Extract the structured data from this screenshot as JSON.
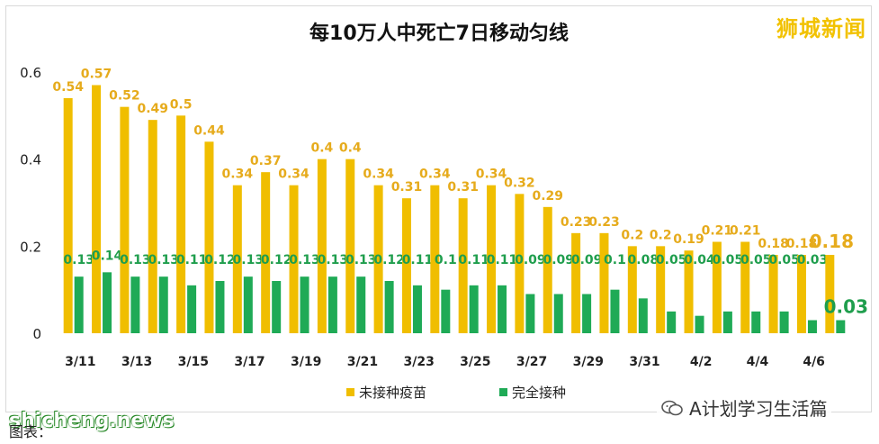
{
  "brand": "狮城新闻",
  "watermark": {
    "site": "shicheng.news",
    "account": "A计划学习生活篇"
  },
  "caption": "图表：",
  "colors": {
    "unvaccinated": "#f0be00",
    "unvaccinated_label": "#e6ab1c",
    "vaccinated": "#1faa56",
    "vaccinated_label": "#1f9e4d",
    "axis_text": "#222222"
  },
  "chart_data": {
    "type": "bar",
    "title": "每10万人中死亡7日移动匀线",
    "categories": [
      "3/11",
      "3/12",
      "3/13",
      "3/14",
      "3/15",
      "3/16",
      "3/17",
      "3/18",
      "3/19",
      "3/20",
      "3/21",
      "3/22",
      "3/23",
      "3/24",
      "3/25",
      "3/26",
      "3/27",
      "3/28",
      "3/29",
      "3/30",
      "3/31",
      "4/1",
      "4/2",
      "4/3",
      "4/4",
      "4/5",
      "4/6",
      "4/7"
    ],
    "tick_labels": [
      "3/11",
      "3/13",
      "3/15",
      "3/17",
      "3/19",
      "3/21",
      "3/23",
      "3/25",
      "3/27",
      "3/29",
      "3/31",
      "4/2",
      "4/4",
      "4/6"
    ],
    "series": [
      {
        "name": "未接种疫苗",
        "values": [
          0.54,
          0.57,
          0.52,
          0.49,
          0.5,
          0.44,
          0.34,
          0.37,
          0.34,
          0.4,
          0.4,
          0.34,
          0.31,
          0.34,
          0.31,
          0.34,
          0.32,
          0.29,
          0.23,
          0.23,
          0.2,
          0.2,
          0.19,
          0.21,
          0.21,
          0.18,
          0.18,
          0.18
        ]
      },
      {
        "name": "完全接种",
        "values": [
          0.13,
          0.14,
          0.13,
          0.13,
          0.11,
          0.12,
          0.13,
          0.12,
          0.13,
          0.13,
          0.13,
          0.12,
          0.11,
          0.1,
          0.11,
          0.11,
          0.09,
          0.09,
          0.09,
          0.1,
          0.08,
          0.05,
          0.04,
          0.05,
          0.05,
          0.05,
          0.03,
          0.03
        ]
      }
    ],
    "y_ticks": [
      "0",
      "0.2",
      "0.4",
      "0.6"
    ],
    "ylim": [
      0,
      0.6
    ],
    "xlabel": "",
    "ylabel": "",
    "grid": false,
    "legend_position": "bottom"
  }
}
